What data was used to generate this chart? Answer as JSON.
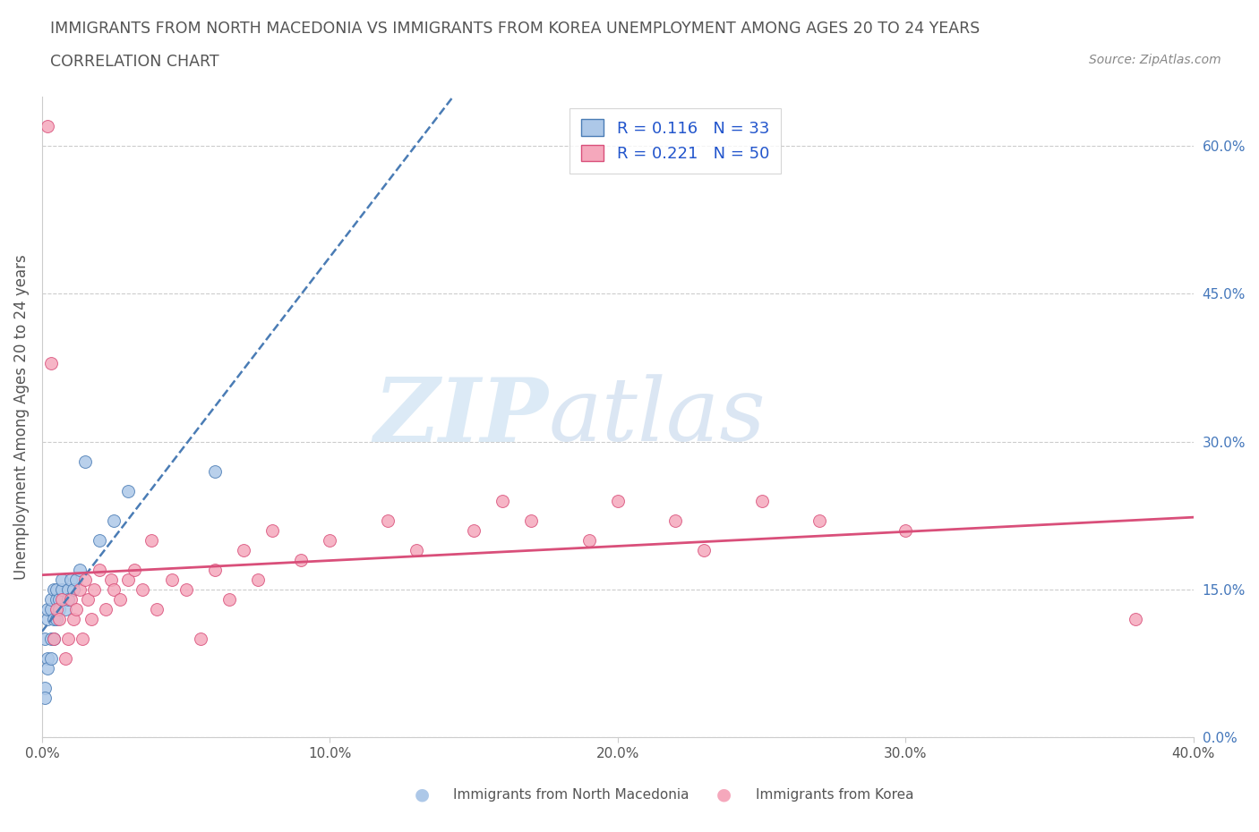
{
  "title_line1": "IMMIGRANTS FROM NORTH MACEDONIA VS IMMIGRANTS FROM KOREA UNEMPLOYMENT AMONG AGES 20 TO 24 YEARS",
  "title_line2": "CORRELATION CHART",
  "source": "Source: ZipAtlas.com",
  "ylabel": "Unemployment Among Ages 20 to 24 years",
  "xlabel_blue": "Immigrants from North Macedonia",
  "xlabel_pink": "Immigrants from Korea",
  "xlim": [
    0.0,
    0.4
  ],
  "ylim": [
    0.0,
    0.65
  ],
  "yticks": [
    0.0,
    0.15,
    0.3,
    0.45,
    0.6
  ],
  "xticks": [
    0.0,
    0.1,
    0.2,
    0.3,
    0.4
  ],
  "blue_R": 0.116,
  "blue_N": 33,
  "pink_R": 0.221,
  "pink_N": 50,
  "blue_color": "#adc8e8",
  "pink_color": "#f5a8bc",
  "blue_line_color": "#4a7cb5",
  "pink_line_color": "#d94f7a",
  "watermark_zip": "ZIP",
  "watermark_atlas": "atlas",
  "blue_scatter_x": [
    0.001,
    0.001,
    0.001,
    0.002,
    0.002,
    0.002,
    0.002,
    0.003,
    0.003,
    0.003,
    0.003,
    0.004,
    0.004,
    0.004,
    0.005,
    0.005,
    0.005,
    0.006,
    0.006,
    0.007,
    0.007,
    0.008,
    0.009,
    0.009,
    0.01,
    0.011,
    0.012,
    0.013,
    0.015,
    0.02,
    0.025,
    0.03,
    0.06
  ],
  "blue_scatter_y": [
    0.05,
    0.04,
    0.1,
    0.08,
    0.12,
    0.13,
    0.07,
    0.1,
    0.13,
    0.14,
    0.08,
    0.15,
    0.12,
    0.1,
    0.14,
    0.15,
    0.12,
    0.14,
    0.13,
    0.15,
    0.16,
    0.13,
    0.15,
    0.14,
    0.16,
    0.15,
    0.16,
    0.17,
    0.28,
    0.2,
    0.22,
    0.25,
    0.27
  ],
  "pink_scatter_x": [
    0.002,
    0.003,
    0.004,
    0.005,
    0.006,
    0.007,
    0.008,
    0.009,
    0.01,
    0.011,
    0.012,
    0.013,
    0.014,
    0.015,
    0.016,
    0.017,
    0.018,
    0.02,
    0.022,
    0.024,
    0.025,
    0.027,
    0.03,
    0.032,
    0.035,
    0.038,
    0.04,
    0.045,
    0.05,
    0.055,
    0.06,
    0.065,
    0.07,
    0.075,
    0.08,
    0.09,
    0.1,
    0.12,
    0.13,
    0.15,
    0.16,
    0.17,
    0.19,
    0.2,
    0.22,
    0.23,
    0.25,
    0.27,
    0.3,
    0.38
  ],
  "pink_scatter_y": [
    0.62,
    0.38,
    0.1,
    0.13,
    0.12,
    0.14,
    0.08,
    0.1,
    0.14,
    0.12,
    0.13,
    0.15,
    0.1,
    0.16,
    0.14,
    0.12,
    0.15,
    0.17,
    0.13,
    0.16,
    0.15,
    0.14,
    0.16,
    0.17,
    0.15,
    0.2,
    0.13,
    0.16,
    0.15,
    0.1,
    0.17,
    0.14,
    0.19,
    0.16,
    0.21,
    0.18,
    0.2,
    0.22,
    0.19,
    0.21,
    0.24,
    0.22,
    0.2,
    0.24,
    0.22,
    0.19,
    0.24,
    0.22,
    0.21,
    0.12
  ]
}
